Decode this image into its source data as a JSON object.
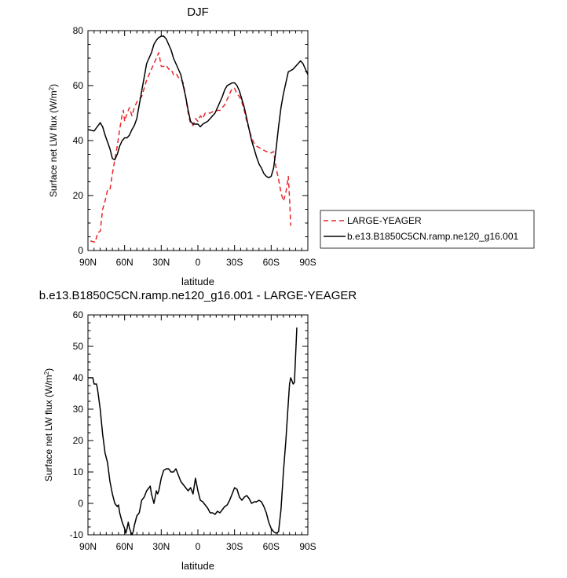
{
  "chart_data": [
    {
      "type": "line",
      "title": "DJF",
      "xlabel": "latitude",
      "ylabel": "Surface net LW flux (W/m",
      "ylabel_sup": "2",
      "ylabel_close": ")",
      "xlim": [
        -90,
        90
      ],
      "ylim": [
        0,
        80
      ],
      "xticks": [
        -90,
        -60,
        -30,
        0,
        30,
        60,
        90
      ],
      "xtick_labels": [
        "90N",
        "60N",
        "30N",
        "0",
        "30S",
        "60S",
        "90S"
      ],
      "yticks": [
        0,
        20,
        40,
        60,
        80
      ],
      "ytick_labels": [
        "0",
        "20",
        "40",
        "60",
        "80"
      ],
      "grid": false,
      "legend_position": "right",
      "series": [
        {
          "name": "LARGE-YEAGER",
          "color": "#e8262b",
          "dash": "dashed",
          "points": [
            [
              -88,
              3.5
            ],
            [
              -84,
              3
            ],
            [
              -82,
              6.5
            ],
            [
              -80,
              7
            ],
            [
              -78,
              15
            ],
            [
              -76,
              18
            ],
            [
              -74,
              22
            ],
            [
              -72,
              22
            ],
            [
              -70,
              28
            ],
            [
              -68,
              33
            ],
            [
              -66,
              38
            ],
            [
              -64,
              44
            ],
            [
              -62,
              49.5
            ],
            [
              -61,
              51
            ],
            [
              -60,
              47
            ],
            [
              -58,
              50
            ],
            [
              -56,
              52
            ],
            [
              -54,
              49
            ],
            [
              -52,
              52
            ],
            [
              -50,
              54
            ],
            [
              -46,
              56
            ],
            [
              -42,
              62
            ],
            [
              -38,
              66
            ],
            [
              -36,
              68
            ],
            [
              -34,
              70
            ],
            [
              -32,
              72
            ],
            [
              -30,
              67
            ],
            [
              -28,
              67
            ],
            [
              -26,
              67.5
            ],
            [
              -24,
              66
            ],
            [
              -22,
              66
            ],
            [
              -20,
              64
            ],
            [
              -18,
              64.5
            ],
            [
              -16,
              63
            ],
            [
              -14,
              62.5
            ],
            [
              -12,
              61
            ],
            [
              -10,
              56
            ],
            [
              -8,
              50
            ],
            [
              -6,
              46
            ],
            [
              -4,
              45.5
            ],
            [
              -2,
              48
            ],
            [
              0,
              47
            ],
            [
              2,
              49
            ],
            [
              4,
              48
            ],
            [
              6,
              50
            ],
            [
              8,
              50
            ],
            [
              10,
              50
            ],
            [
              12,
              50.5
            ],
            [
              14,
              50.5
            ],
            [
              16,
              51
            ],
            [
              18,
              51
            ],
            [
              20,
              52
            ],
            [
              22,
              53
            ],
            [
              24,
              55
            ],
            [
              26,
              57
            ],
            [
              28,
              59
            ],
            [
              30,
              59
            ],
            [
              32,
              57
            ],
            [
              34,
              56
            ],
            [
              36,
              54
            ],
            [
              38,
              51
            ],
            [
              40,
              47
            ],
            [
              42,
              44
            ],
            [
              44,
              41
            ],
            [
              46,
              39
            ],
            [
              48,
              38
            ],
            [
              50,
              37.5
            ],
            [
              52,
              37
            ],
            [
              54,
              36.5
            ],
            [
              56,
              36
            ],
            [
              58,
              36
            ],
            [
              60,
              35.5
            ],
            [
              62,
              36
            ],
            [
              64,
              30
            ],
            [
              66,
              26
            ],
            [
              68,
              21
            ],
            [
              70,
              18
            ],
            [
              72,
              21
            ],
            [
              74,
              27
            ],
            [
              75,
              19
            ],
            [
              76,
              9
            ]
          ]
        },
        {
          "name": "b.e13.B1850C5CN.ramp.ne120_g16.001",
          "color": "#000000",
          "dash": "solid",
          "points": [
            [
              -90,
              44
            ],
            [
              -85,
              43.5
            ],
            [
              -80,
              46.5
            ],
            [
              -78,
              45
            ],
            [
              -76,
              42
            ],
            [
              -72,
              37
            ],
            [
              -70,
              33.5
            ],
            [
              -68,
              33
            ],
            [
              -66,
              35
            ],
            [
              -64,
              38
            ],
            [
              -62,
              40
            ],
            [
              -60,
              41
            ],
            [
              -58,
              41
            ],
            [
              -56,
              42
            ],
            [
              -54,
              44
            ],
            [
              -52,
              45.5
            ],
            [
              -50,
              48
            ],
            [
              -48,
              53
            ],
            [
              -46,
              58
            ],
            [
              -44,
              63
            ],
            [
              -42,
              68
            ],
            [
              -40,
              70
            ],
            [
              -38,
              72
            ],
            [
              -36,
              75
            ],
            [
              -34,
              76.5
            ],
            [
              -32,
              77.5
            ],
            [
              -30,
              78
            ],
            [
              -28,
              78
            ],
            [
              -26,
              77
            ],
            [
              -24,
              75
            ],
            [
              -22,
              73
            ],
            [
              -20,
              70
            ],
            [
              -18,
              68
            ],
            [
              -16,
              66
            ],
            [
              -14,
              64
            ],
            [
              -12,
              60
            ],
            [
              -10,
              56
            ],
            [
              -8,
              51
            ],
            [
              -6,
              47
            ],
            [
              -4,
              46
            ],
            [
              -2,
              46
            ],
            [
              0,
              46
            ],
            [
              2,
              45
            ],
            [
              4,
              46
            ],
            [
              6,
              46.5
            ],
            [
              8,
              47
            ],
            [
              10,
              48
            ],
            [
              12,
              49
            ],
            [
              14,
              50
            ],
            [
              16,
              52
            ],
            [
              18,
              54
            ],
            [
              20,
              56
            ],
            [
              22,
              58.5
            ],
            [
              24,
              60
            ],
            [
              26,
              60.5
            ],
            [
              28,
              61
            ],
            [
              30,
              61
            ],
            [
              32,
              60
            ],
            [
              34,
              58
            ],
            [
              36,
              55
            ],
            [
              38,
              52
            ],
            [
              40,
              48
            ],
            [
              42,
              44
            ],
            [
              44,
              40
            ],
            [
              46,
              37
            ],
            [
              48,
              34
            ],
            [
              50,
              31.5
            ],
            [
              52,
              30
            ],
            [
              54,
              28
            ],
            [
              56,
              27
            ],
            [
              58,
              26.5
            ],
            [
              60,
              27
            ],
            [
              62,
              30
            ],
            [
              64,
              37
            ],
            [
              66,
              45
            ],
            [
              68,
              52
            ],
            [
              70,
              57
            ],
            [
              72,
              61
            ],
            [
              74,
              65
            ],
            [
              76,
              65.5
            ],
            [
              78,
              66
            ],
            [
              80,
              67
            ],
            [
              82,
              68
            ],
            [
              84,
              69
            ],
            [
              86,
              68
            ],
            [
              88,
              66
            ],
            [
              90,
              64
            ]
          ]
        }
      ]
    },
    {
      "type": "line",
      "title": "b.e13.B1850C5CN.ramp.ne120_g16.001 - LARGE-YEAGER",
      "xlabel": "latitude",
      "ylabel": "Surface net LW flux (W/m",
      "ylabel_sup": "2",
      "ylabel_close": ")",
      "xlim": [
        -90,
        90
      ],
      "ylim": [
        -10,
        60
      ],
      "xticks": [
        -90,
        -60,
        -30,
        0,
        30,
        60,
        90
      ],
      "xtick_labels": [
        "90N",
        "60N",
        "30N",
        "0",
        "30S",
        "60S",
        "90S"
      ],
      "yticks": [
        -10,
        0,
        10,
        20,
        30,
        40,
        50,
        60
      ],
      "ytick_labels": [
        "-10",
        "0",
        "10",
        "20",
        "30",
        "40",
        "50",
        "60"
      ],
      "grid": false,
      "series": [
        {
          "color": "#000000",
          "dash": "solid",
          "points": [
            [
              -90,
              40
            ],
            [
              -86,
              40
            ],
            [
              -85,
              38
            ],
            [
              -83,
              38
            ],
            [
              -82,
              36
            ],
            [
              -80,
              30
            ],
            [
              -78,
              22
            ],
            [
              -76,
              16
            ],
            [
              -74,
              13
            ],
            [
              -72,
              7
            ],
            [
              -70,
              3
            ],
            [
              -68,
              0
            ],
            [
              -66,
              -1
            ],
            [
              -65,
              -0.5
            ],
            [
              -64,
              -3
            ],
            [
              -62,
              -6
            ],
            [
              -60,
              -8
            ],
            [
              -59,
              -9.5
            ],
            [
              -58,
              -8
            ],
            [
              -57,
              -6
            ],
            [
              -56,
              -8
            ],
            [
              -54,
              -10
            ],
            [
              -53,
              -9
            ],
            [
              -52,
              -7
            ],
            [
              -50,
              -4
            ],
            [
              -48,
              -3
            ],
            [
              -46,
              1
            ],
            [
              -44,
              2
            ],
            [
              -42,
              4
            ],
            [
              -40,
              5
            ],
            [
              -39,
              5.5
            ],
            [
              -38,
              3
            ],
            [
              -36,
              0
            ],
            [
              -35,
              2
            ],
            [
              -34,
              4
            ],
            [
              -33,
              3
            ],
            [
              -32,
              4
            ],
            [
              -30,
              8
            ],
            [
              -28,
              10.5
            ],
            [
              -26,
              11
            ],
            [
              -24,
              11
            ],
            [
              -22,
              10
            ],
            [
              -20,
              10
            ],
            [
              -18,
              11
            ],
            [
              -16,
              9
            ],
            [
              -14,
              7
            ],
            [
              -12,
              6
            ],
            [
              -10,
              5
            ],
            [
              -8,
              4
            ],
            [
              -6,
              5
            ],
            [
              -4,
              3
            ],
            [
              -2,
              8
            ],
            [
              0,
              4
            ],
            [
              2,
              1
            ],
            [
              4,
              0.5
            ],
            [
              6,
              -0.5
            ],
            [
              8,
              -1.5
            ],
            [
              10,
              -3
            ],
            [
              12,
              -3
            ],
            [
              14,
              -3.5
            ],
            [
              16,
              -2.5
            ],
            [
              18,
              -3
            ],
            [
              20,
              -2
            ],
            [
              22,
              -1
            ],
            [
              24,
              -0.5
            ],
            [
              26,
              1
            ],
            [
              28,
              3
            ],
            [
              30,
              5
            ],
            [
              32,
              4.5
            ],
            [
              34,
              2
            ],
            [
              36,
              1
            ],
            [
              38,
              2
            ],
            [
              40,
              2.5
            ],
            [
              42,
              1.5
            ],
            [
              44,
              0
            ],
            [
              46,
              0.5
            ],
            [
              48,
              0.5
            ],
            [
              50,
              1
            ],
            [
              52,
              0.5
            ],
            [
              54,
              -1
            ],
            [
              56,
              -3
            ],
            [
              58,
              -6
            ],
            [
              60,
              -8
            ],
            [
              62,
              -9
            ],
            [
              64,
              -9.5
            ],
            [
              66,
              -9
            ],
            [
              68,
              -2
            ],
            [
              70,
              10
            ],
            [
              72,
              20
            ],
            [
              74,
              32
            ],
            [
              75,
              38
            ],
            [
              76,
              40
            ],
            [
              77,
              39
            ],
            [
              78,
              38
            ],
            [
              79,
              38.5
            ],
            [
              80,
              47
            ],
            [
              81,
              56
            ]
          ]
        }
      ]
    }
  ]
}
